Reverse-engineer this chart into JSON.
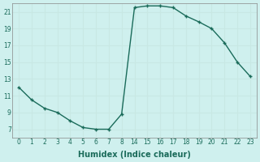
{
  "x_labels": [
    "0",
    "1",
    "2",
    "3",
    "4",
    "5",
    "6",
    "7",
    "8",
    "14",
    "15",
    "16",
    "17",
    "18",
    "19",
    "20",
    "21",
    "22",
    "23"
  ],
  "y": [
    12.0,
    10.5,
    9.5,
    9.0,
    8.0,
    7.2,
    7.0,
    7.0,
    8.8,
    21.5,
    21.7,
    21.7,
    21.5,
    20.5,
    19.8,
    19.0,
    17.3,
    15.0,
    13.3
  ],
  "xlabel": "Humidex (Indice chaleur)",
  "ylim": [
    6,
    22
  ],
  "yticks": [
    7,
    9,
    11,
    13,
    15,
    17,
    19,
    21
  ],
  "line_color": "#1a6b5a",
  "marker": "+",
  "marker_size": 3,
  "marker_edge_width": 1.0,
  "line_width": 1.0,
  "background_color": "#cff0ee",
  "grid_color": "#c8e8e4",
  "spine_color": "#888888",
  "tick_label_color": "#1a6b5a",
  "xlabel_fontsize": 7,
  "tick_fontsize": 5.5
}
